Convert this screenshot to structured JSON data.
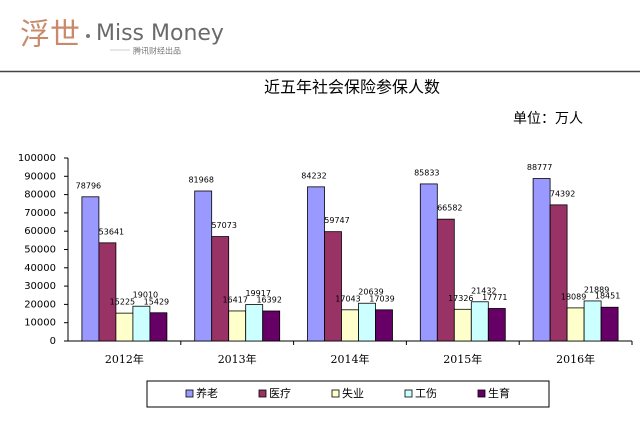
{
  "header": {
    "logo": "浮世",
    "brand": "Miss Money",
    "tagline": "腾讯财经出品"
  },
  "chart_data": {
    "type": "bar",
    "title": "近五年社会保险参保人数",
    "unit": "单位：万人",
    "categories": [
      "2012年",
      "2013年",
      "2014年",
      "2015年",
      "2016年"
    ],
    "series": [
      {
        "name": "养老",
        "color": "#9999ff",
        "values": [
          78796,
          81968,
          84232,
          85833,
          88777
        ]
      },
      {
        "name": "医疗",
        "color": "#993366",
        "values": [
          53641,
          57073,
          59747,
          66582,
          74392
        ]
      },
      {
        "name": "失业",
        "color": "#ffffcc",
        "values": [
          15225,
          16417,
          17043,
          17326,
          18089
        ]
      },
      {
        "name": "工伤",
        "color": "#ccffff",
        "values": [
          19010,
          19917,
          20639,
          21432,
          21889
        ]
      },
      {
        "name": "生育",
        "color": "#660066",
        "values": [
          15429,
          16392,
          17039,
          17771,
          18451
        ]
      }
    ],
    "ylim": [
      0,
      100000
    ],
    "yticks": [
      0,
      10000,
      20000,
      30000,
      40000,
      50000,
      60000,
      70000,
      80000,
      90000,
      100000
    ],
    "legend": "bottom"
  }
}
